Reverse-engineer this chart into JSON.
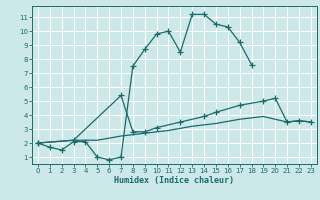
{
  "xlabel": "Humidex (Indice chaleur)",
  "background_color": "#cce8e8",
  "grid_color": "#ffffff",
  "line_color": "#1a6b6b",
  "xlim": [
    -0.5,
    23.5
  ],
  "ylim": [
    0.5,
    11.8
  ],
  "xticks": [
    0,
    1,
    2,
    3,
    4,
    5,
    6,
    7,
    8,
    9,
    10,
    11,
    12,
    13,
    14,
    15,
    16,
    17,
    18,
    19,
    20,
    21,
    22,
    23
  ],
  "yticks": [
    1,
    2,
    3,
    4,
    5,
    6,
    7,
    8,
    9,
    10,
    11
  ],
  "line1_x": [
    0,
    1,
    2,
    3,
    4,
    5,
    6,
    7,
    8,
    9,
    10,
    11,
    12,
    13,
    14,
    15,
    16,
    17,
    18
  ],
  "line1_y": [
    2,
    1.7,
    1.5,
    2.1,
    2.1,
    1.0,
    0.8,
    1.0,
    7.5,
    8.7,
    9.8,
    10.0,
    8.5,
    11.2,
    11.2,
    10.5,
    10.3,
    9.2,
    7.6
  ],
  "line2_x": [
    0,
    3,
    7,
    8,
    9,
    10,
    12,
    14,
    15,
    17,
    19,
    20,
    21,
    22,
    23
  ],
  "line2_y": [
    2,
    2.2,
    5.4,
    2.8,
    2.8,
    3.1,
    3.5,
    3.9,
    4.2,
    4.7,
    5.0,
    5.2,
    3.5,
    3.6,
    3.5
  ],
  "line3_x": [
    0,
    3,
    5,
    7,
    9,
    11,
    13,
    15,
    17,
    19,
    21,
    22,
    23
  ],
  "line3_y": [
    2,
    2.2,
    2.2,
    2.5,
    2.7,
    2.9,
    3.2,
    3.4,
    3.7,
    3.9,
    3.5,
    3.6,
    3.5
  ]
}
